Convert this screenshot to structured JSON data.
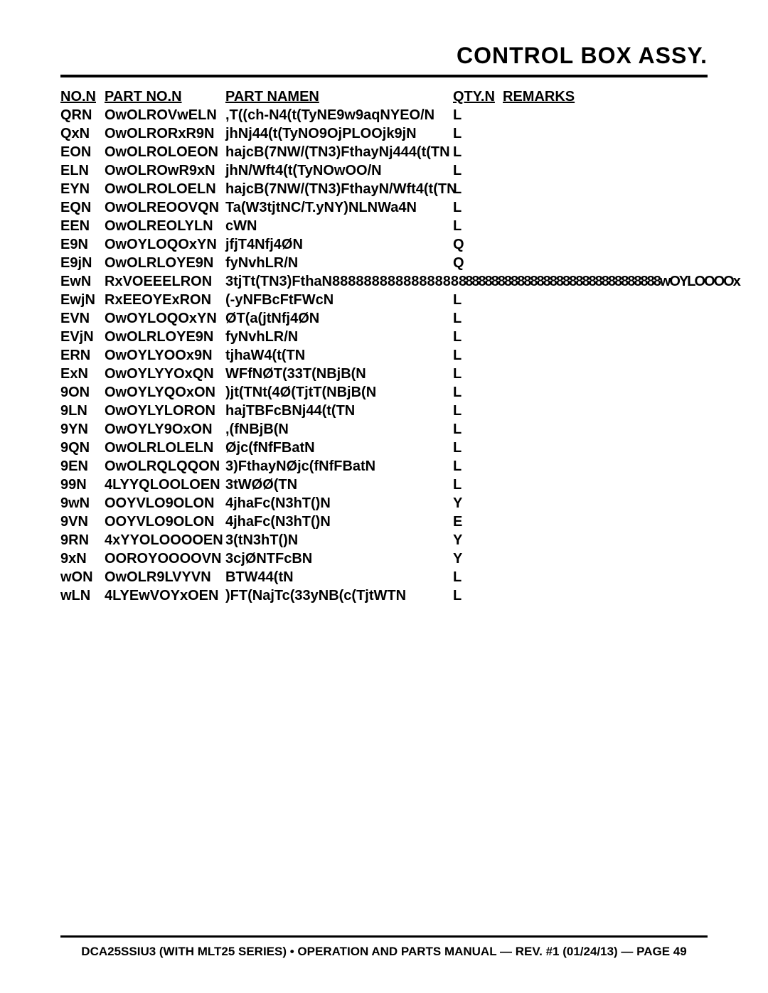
{
  "title": "CONTROL BOX ASSY.",
  "headers": {
    "no": "NO.N",
    "part_no": "PART NO.N",
    "part_name": "PART NAMEN",
    "qty": "QTY.N",
    "remarks": "REMARKS"
  },
  "rows": [
    {
      "no": "QRN",
      "part": "OwOLROVwELN",
      "name": ",T((ch-N4(t(TyNE9w9aqNYEO/N",
      "qty": "L",
      "rem": ""
    },
    {
      "no": "QxN",
      "part": "OwOLRORxR9N",
      "name": "jhNj44(t(TyNO9OjPLOOjk9jN",
      "qty": "L",
      "rem": ""
    },
    {
      "no": "EON",
      "part": "OwOLROLOEON",
      "name": "hajcB(7NW/(TN3)FthayNj444(t(TN",
      "qty": "L",
      "rem": ""
    },
    {
      "no": "ELN",
      "part": "OwOLROwR9xN",
      "name": "jhN/Wft4(t(TyNOwOO/N",
      "qty": "L",
      "rem": ""
    },
    {
      "no": "EYN",
      "part": "OwOLROLOELN",
      "name": "hajcB(7NW/(TN3)FthayN/Wft4(t(TN",
      "qty": "L",
      "rem": ""
    },
    {
      "no": "EQN",
      "part": "OwOLREOOVQN",
      "name": "Ta(W3tjtNC/T.yNY)NLNWa4N",
      "qty": "L",
      "rem": ""
    },
    {
      "no": "EEN",
      "part": "OwOLREOLYLN",
      "name": "cWN",
      "qty": "L",
      "rem": ""
    },
    {
      "no": "E9N",
      "part": "OwOYLOQOxYN",
      "name": "jfjT4Nfj4ØN",
      "qty": "Q",
      "rem": ""
    },
    {
      "no": "E9jN",
      "part": "OwOLRLOYE9N",
      "name": "fyNvhLR/N",
      "qty": "Q",
      "rem": ""
    },
    {
      "no": "EwN",
      "part": "RxVOEEELRON",
      "name": "3tjTt(TN3)FthaN8888888888888888",
      "qty": "",
      "rem": ""
    },
    {
      "no": "EwjN",
      "part": "RxEEOYExRON",
      "name": "(-yNFBcFtFWcN",
      "qty": "L",
      "rem": ""
    },
    {
      "no": "EVN",
      "part": "OwOYLOQOxYN",
      "name": "ØT(a(jtNfj4ØN",
      "qty": "L",
      "rem": ""
    },
    {
      "no": "EVjN",
      "part": "OwOLRLOYE9N",
      "name": "fyNvhLR/N",
      "qty": "L",
      "rem": ""
    },
    {
      "no": "ERN",
      "part": "OwOYLYOOx9N",
      "name": "tjhaW4(t(TN",
      "qty": "L",
      "rem": ""
    },
    {
      "no": "ExN",
      "part": "OwOYLYYOxQN",
      "name": "WFfNØT(33T(NBjB(N",
      "qty": "L",
      "rem": ""
    },
    {
      "no": "9ON",
      "part": "OwOYLYQOxON",
      "name": ")jt(TNt(4Ø(TjtT(NBjB(N",
      "qty": "L",
      "rem": ""
    },
    {
      "no": "9LN",
      "part": "OwOYLYLORON",
      "name": "hajTBFcBNj44(t(TN",
      "qty": "L",
      "rem": ""
    },
    {
      "no": "9YN",
      "part": "OwOYLY9OxON",
      "name": ",(fNBjB(N",
      "qty": "L",
      "rem": ""
    },
    {
      "no": "9QN",
      "part": "OwOLRLOLELN",
      "name": "Øjc(fNfFBatN",
      "qty": "L",
      "rem": ""
    },
    {
      "no": "9EN",
      "part": "OwOLRQLQQON",
      "name": "3)FthayNØjc(fNfFBatN",
      "qty": "L",
      "rem": ""
    },
    {
      "no": "99N",
      "part": "4LYYQLOOLOEN",
      "name": "3tWØØ(TN",
      "qty": "L",
      "rem": ""
    },
    {
      "no": "9wN",
      "part": "OOYVLO9OLON",
      "name": "4jhaFc(N3hT()N",
      "qty": "Y",
      "rem": ""
    },
    {
      "no": "9VN",
      "part": "OOYVLO9OLON",
      "name": "4jhaFc(N3hT()N",
      "qty": "E",
      "rem": ""
    },
    {
      "no": "9RN",
      "part": "4xYYOLOOOOEN",
      "name": "3(tN3hT()N",
      "qty": "Y",
      "rem": ""
    },
    {
      "no": "9xN",
      "part": "OOROYOOOOVN",
      "name": "3cjØNTFcBN",
      "qty": "Y",
      "rem": ""
    },
    {
      "no": "wON",
      "part": "OwOLR9LVYVN",
      "name": "BTW44(tN",
      "qty": "L",
      "rem": ""
    },
    {
      "no": "wLN",
      "part": "4LYEwVOYxOEN",
      "name": ")FT(NajTc(33yNB(c(TjtWTN",
      "qty": "L",
      "rem": ""
    }
  ],
  "special_row_index": 9,
  "special_overlay": "8888888888888888888888888888888wOYLOOOOx",
  "footer": "DCA25SSIU3 (WITH MLT25 SERIES) • OPERATION AND PARTS MANUAL — REV. #1 (01/24/13) — PAGE 49",
  "colors": {
    "text": "#000000",
    "bg": "#ffffff"
  }
}
